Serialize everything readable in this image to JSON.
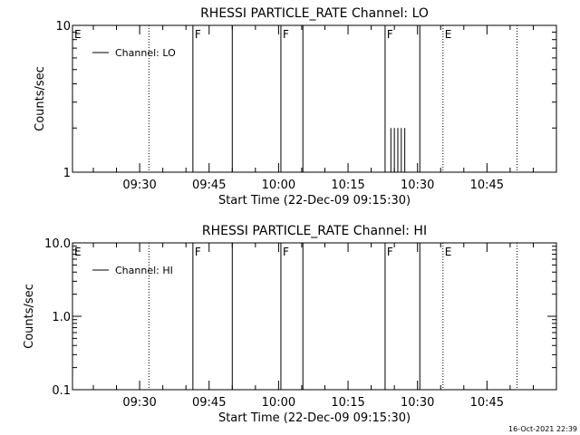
{
  "footer": {
    "timestamp": "16-Oct-2021 22:39"
  },
  "chart_data": [
    {
      "type": "line",
      "title": "RHESSI PARTICLE_RATE Channel: LO",
      "xlabel": "Start Time (22-Dec-09 09:15:30)",
      "ylabel": "Counts/sec",
      "y_scale": "log",
      "ylim": [
        1,
        10
      ],
      "y_ticks": [
        {
          "value": 1,
          "label": "1"
        },
        {
          "value": 10,
          "label": "10"
        }
      ],
      "xlim": [
        "09:15:30",
        "11:00:00"
      ],
      "x_ticks": [
        "09:30",
        "09:45",
        "10:00",
        "10:15",
        "10:30",
        "10:45"
      ],
      "legend": {
        "position": "top-left",
        "entries": [
          "Channel: LO"
        ]
      },
      "series": [
        {
          "name": "Channel: LO",
          "spikes": [
            {
              "time": "10:24:15",
              "value": 2.0
            },
            {
              "time": "10:25:00",
              "value": 2.0
            },
            {
              "time": "10:25:45",
              "value": 2.0
            },
            {
              "time": "10:26:30",
              "value": 2.0
            },
            {
              "time": "10:27:15",
              "value": 2.0
            }
          ]
        }
      ],
      "markers": [
        {
          "time": "09:15:30",
          "label": "E",
          "style": "dotted",
          "show_line": false
        },
        {
          "time": "09:32:00",
          "label": "",
          "style": "dotted"
        },
        {
          "time": "09:41:30",
          "label": "F",
          "style": "solid"
        },
        {
          "time": "09:50:00",
          "label": "",
          "style": "solid"
        },
        {
          "time": "10:00:30",
          "label": "F",
          "style": "solid"
        },
        {
          "time": "10:05:15",
          "label": "",
          "style": "solid"
        },
        {
          "time": "10:23:00",
          "label": "F",
          "style": "solid"
        },
        {
          "time": "10:30:30",
          "label": "",
          "style": "solid"
        },
        {
          "time": "10:35:30",
          "label": "E",
          "style": "dotted"
        },
        {
          "time": "10:51:30",
          "label": "",
          "style": "dotted"
        }
      ]
    },
    {
      "type": "line",
      "title": "RHESSI PARTICLE_RATE Channel: HI",
      "xlabel": "Start Time (22-Dec-09 09:15:30)",
      "ylabel": "Counts/sec",
      "y_scale": "log",
      "ylim": [
        0.1,
        10
      ],
      "y_ticks": [
        {
          "value": 0.1,
          "label": "0.1"
        },
        {
          "value": 1,
          "label": "1.0"
        },
        {
          "value": 10,
          "label": "10.0"
        }
      ],
      "xlim": [
        "09:15:30",
        "11:00:00"
      ],
      "x_ticks": [
        "09:30",
        "09:45",
        "10:00",
        "10:15",
        "10:30",
        "10:45"
      ],
      "legend": {
        "position": "top-left",
        "entries": [
          "Channel: HI"
        ]
      },
      "series": [
        {
          "name": "Channel: HI",
          "spikes": []
        }
      ],
      "markers": [
        {
          "time": "09:15:30",
          "label": "E",
          "style": "dotted",
          "show_line": false
        },
        {
          "time": "09:32:00",
          "label": "",
          "style": "dotted"
        },
        {
          "time": "09:41:30",
          "label": "F",
          "style": "solid"
        },
        {
          "time": "09:50:00",
          "label": "",
          "style": "solid"
        },
        {
          "time": "10:00:30",
          "label": "F",
          "style": "solid"
        },
        {
          "time": "10:05:15",
          "label": "",
          "style": "solid"
        },
        {
          "time": "10:23:00",
          "label": "F",
          "style": "solid"
        },
        {
          "time": "10:30:30",
          "label": "",
          "style": "solid"
        },
        {
          "time": "10:35:30",
          "label": "E",
          "style": "dotted"
        },
        {
          "time": "10:51:30",
          "label": "",
          "style": "dotted"
        }
      ]
    }
  ]
}
